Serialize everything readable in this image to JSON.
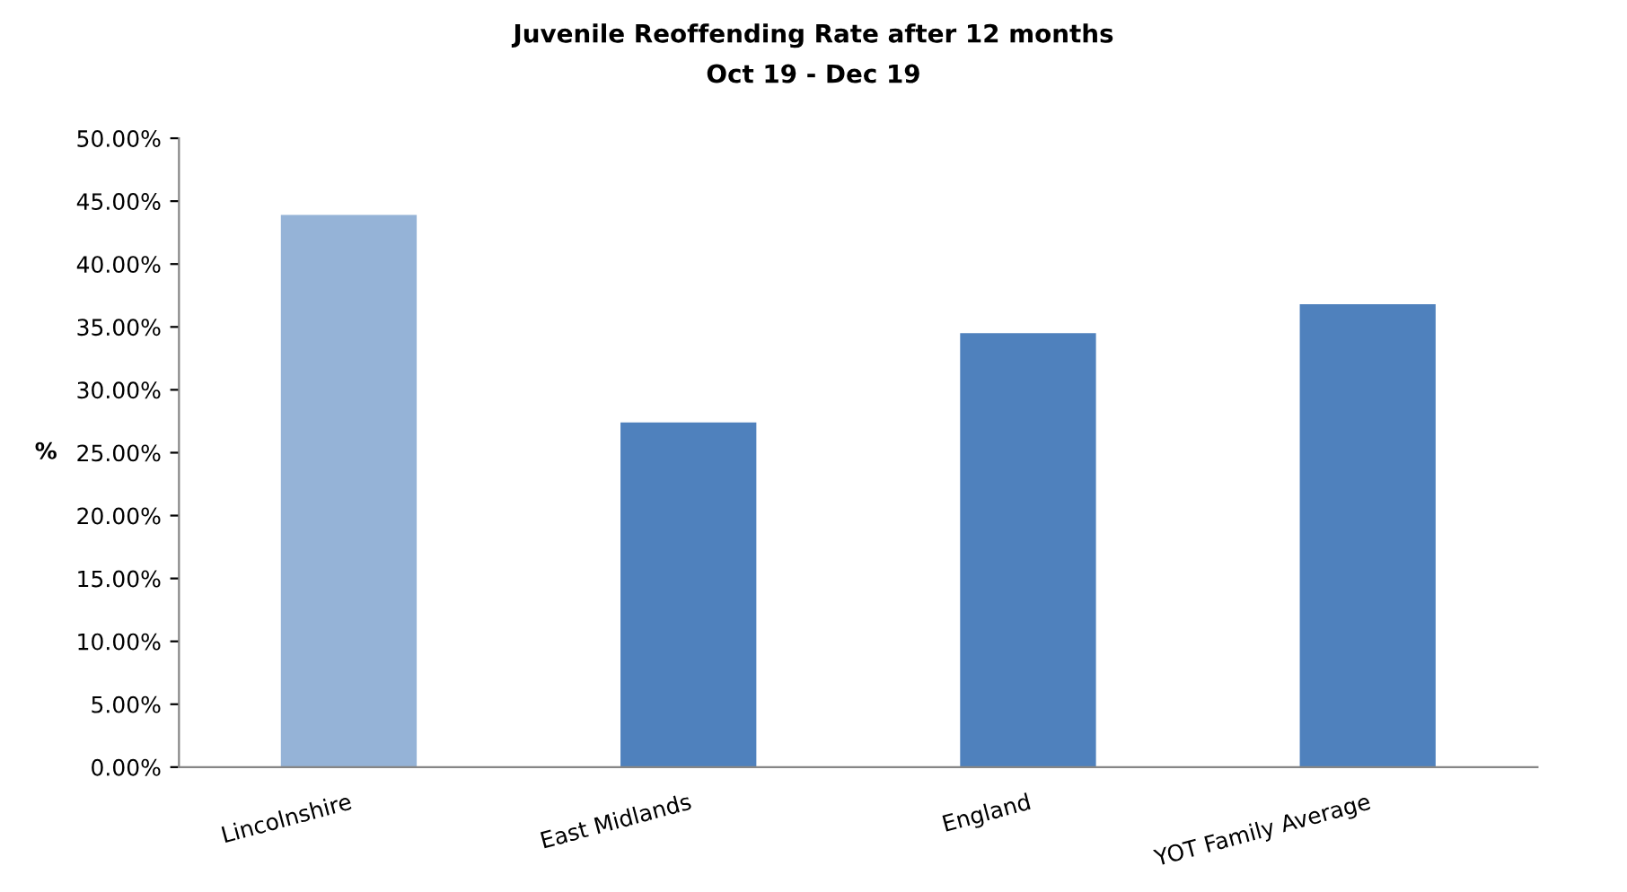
{
  "chart_data": {
    "type": "bar",
    "title": "Juvenile Reoffending Rate after 12 months",
    "subtitle": "Oct 19 - Dec 19",
    "ylabel": "%",
    "categories": [
      "Lincolnshire",
      "East Midlands",
      "England",
      "YOT Family Average"
    ],
    "values": [
      43.9,
      27.4,
      34.5,
      36.8
    ],
    "colors": [
      "#95b3d7",
      "#4f81bd",
      "#4f81bd",
      "#4f81bd"
    ],
    "ylim": [
      0,
      50
    ],
    "yticks": [
      {
        "value": 0,
        "label": "0.00%"
      },
      {
        "value": 5,
        "label": "5.00%"
      },
      {
        "value": 10,
        "label": "10.00%"
      },
      {
        "value": 15,
        "label": "15.00%"
      },
      {
        "value": 20,
        "label": "20.00%"
      },
      {
        "value": 25,
        "label": "25.00%"
      },
      {
        "value": 30,
        "label": "30.00%"
      },
      {
        "value": 35,
        "label": "35.00%"
      },
      {
        "value": 40,
        "label": "40.00%"
      },
      {
        "value": 45,
        "label": "45.00%"
      },
      {
        "value": 50,
        "label": "50.00%"
      }
    ],
    "grid": false
  }
}
